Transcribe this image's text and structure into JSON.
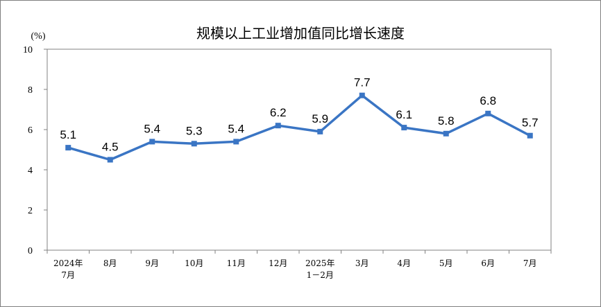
{
  "chart_data": {
    "type": "line",
    "title": "规模以上工业增加值同比增长速度",
    "ylabel": "(%)",
    "xlabel": "",
    "ylim": [
      0,
      10
    ],
    "yticks": [
      "0",
      "2",
      "4",
      "6",
      "8",
      "10"
    ],
    "grid": false,
    "legend": "none",
    "categories": [
      [
        "2024年",
        "7月"
      ],
      [
        "8月"
      ],
      [
        "9月"
      ],
      [
        "10月"
      ],
      [
        "11月"
      ],
      [
        "12月"
      ],
      [
        "2025年",
        "1－2月"
      ],
      [
        "3月"
      ],
      [
        "4月"
      ],
      [
        "5月"
      ],
      [
        "6月"
      ],
      [
        "7月"
      ]
    ],
    "series": [
      {
        "values": [
          5.1,
          4.5,
          5.4,
          5.3,
          5.4,
          6.2,
          5.9,
          7.7,
          6.1,
          5.8,
          6.8,
          5.7
        ],
        "labels": [
          "5.1",
          "4.5",
          "5.4",
          "5.3",
          "5.4",
          "6.2",
          "5.9",
          "7.7",
          "6.1",
          "5.8",
          "6.8",
          "5.7"
        ],
        "color": "#3a75c4"
      }
    ]
  }
}
